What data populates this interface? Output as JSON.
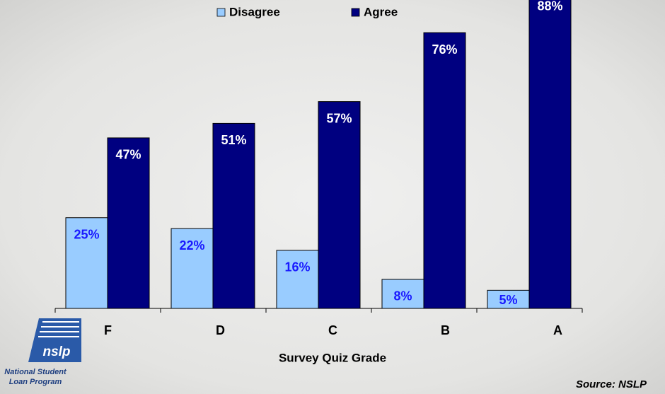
{
  "chart_data": {
    "type": "bar",
    "x_label": "Survey Quiz Grade",
    "categories": [
      "F",
      "D",
      "C",
      "B",
      "A"
    ],
    "series": [
      {
        "name": "Disagree",
        "color": "#99ccff",
        "values": [
          25,
          22,
          16,
          8,
          5
        ],
        "value_labels": [
          "25%",
          "22%",
          "16%",
          "8%",
          "5%"
        ]
      },
      {
        "name": "Agree",
        "color": "#000080",
        "values": [
          47,
          51,
          57,
          76,
          88
        ],
        "value_labels": [
          "47%",
          "51%",
          "57%",
          "76%",
          "88%"
        ]
      }
    ],
    "ylim": [
      0,
      85
    ],
    "legend": "top",
    "source": "Source: NSLP"
  },
  "logo": {
    "mark": "nslp",
    "line1": "National Student",
    "line2": "Loan Program"
  }
}
